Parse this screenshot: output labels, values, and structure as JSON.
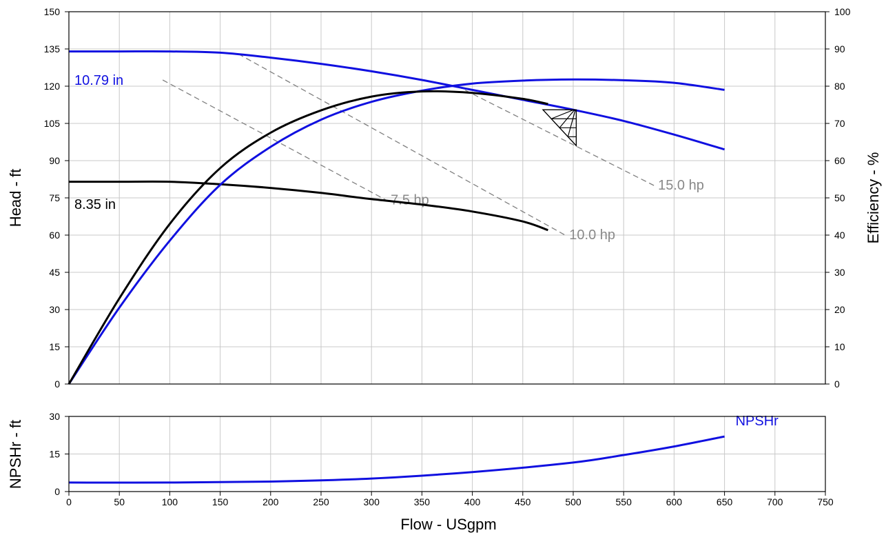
{
  "chart_data": [
    {
      "type": "line",
      "xlabel": "Flow - USgpm",
      "ylabel": "Head - ft",
      "y2label": "Efficiency - %",
      "xlim": [
        0,
        750
      ],
      "ylim": [
        0,
        150
      ],
      "y2lim": [
        0,
        100
      ],
      "x_ticks": [
        0,
        50,
        100,
        150,
        200,
        250,
        300,
        350,
        400,
        450,
        500,
        550,
        600,
        650,
        700,
        750
      ],
      "y_ticks": [
        0,
        15,
        30,
        45,
        60,
        75,
        90,
        105,
        120,
        135,
        150
      ],
      "y2_ticks": [
        0,
        10,
        20,
        30,
        40,
        50,
        60,
        70,
        80,
        90,
        100
      ],
      "grid": true,
      "head_curves": [
        {
          "name": "10.79 in",
          "color": "#1010e0",
          "x": [
            0,
            50,
            100,
            150,
            200,
            250,
            300,
            350,
            400,
            450,
            500,
            550,
            600,
            650
          ],
          "y": [
            134,
            134,
            134,
            133.5,
            131.5,
            129,
            126,
            122.5,
            118.5,
            114.5,
            110.5,
            106,
            100.5,
            94.5
          ]
        },
        {
          "name": "8.35 in",
          "color": "#000000",
          "x": [
            0,
            50,
            100,
            150,
            200,
            250,
            300,
            350,
            400,
            450,
            475
          ],
          "y": [
            81.5,
            81.5,
            81.5,
            80.5,
            79,
            77,
            74.5,
            72.3,
            69.5,
            65.5,
            62
          ]
        }
      ],
      "efficiency_curves": [
        {
          "color": "#1010e0",
          "x": [
            0,
            50,
            100,
            150,
            200,
            250,
            300,
            350,
            400,
            450,
            500,
            550,
            600,
            650
          ],
          "y": [
            0,
            20.5,
            38.5,
            53.5,
            63.7,
            71,
            75.8,
            78.8,
            80.7,
            81.5,
            81.8,
            81.6,
            80.9,
            79
          ]
        },
        {
          "color": "#000000",
          "x": [
            0,
            50,
            100,
            150,
            200,
            250,
            300,
            350,
            400,
            450,
            475
          ],
          "y": [
            0,
            23,
            43,
            58,
            67.5,
            73.5,
            77.2,
            78.6,
            78.2,
            76.6,
            75.2
          ]
        }
      ],
      "power_lines": [
        {
          "label": "7.5 hp",
          "x": [
            93,
            315
          ],
          "y": [
            122.5,
            74
          ]
        },
        {
          "label": "10.0 hp",
          "x": [
            168,
            492
          ],
          "y": [
            133,
            60
          ]
        },
        {
          "label": "15.0 hp",
          "x": [
            385,
            580
          ],
          "y": [
            120,
            80
          ]
        }
      ],
      "bep_marker": {
        "x": [
          470,
          503
        ],
        "y": [
          110.5,
          96
        ]
      },
      "colors": {
        "blue": "#1010e0",
        "black": "#000000",
        "gray": "#808080",
        "grid": "#c8c8c8"
      }
    },
    {
      "type": "line",
      "xlabel": "Flow - USgpm",
      "ylabel": "NPSHr - ft",
      "xlim": [
        0,
        750
      ],
      "ylim": [
        0,
        30
      ],
      "y_ticks": [
        0,
        15,
        30
      ],
      "grid": true,
      "series": [
        {
          "name": "NPSHr",
          "color": "#1010e0",
          "x": [
            0,
            100,
            200,
            300,
            400,
            500,
            550,
            600,
            650
          ],
          "y": [
            3.6,
            3.6,
            4.0,
            5.2,
            7.8,
            11.6,
            14.6,
            18.0,
            22.0
          ]
        }
      ]
    }
  ]
}
